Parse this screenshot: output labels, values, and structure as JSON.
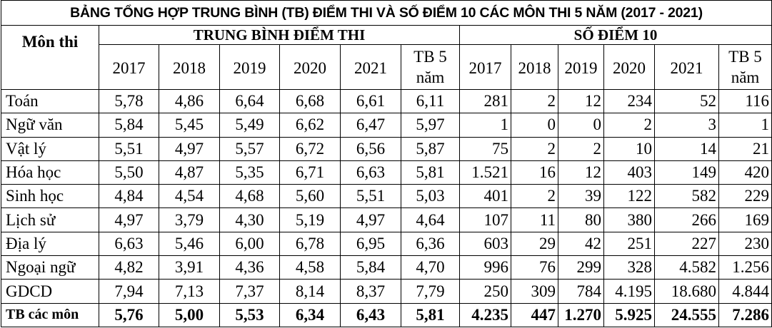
{
  "title": "BẢNG TỔNG HỢP TRUNG BÌNH (TB) ĐIỂM THI VÀ SỐ ĐIỂM 10 CÁC MÔN THI 5 NĂM (2017 - 2021)",
  "header": {
    "subject": "Môn thi",
    "group_average": "TRUNG BÌNH ĐIỂM THI",
    "group_tens": "SỐ ĐIỂM 10",
    "years": [
      "2017",
      "2018",
      "2019",
      "2020",
      "2021"
    ],
    "tb5_line1": "TB 5",
    "tb5_line2": "năm"
  },
  "rows": [
    {
      "subject": "Toán",
      "avg": [
        "5,78",
        "4,86",
        "6,64",
        "6,68",
        "6,61",
        "6,11"
      ],
      "tens": [
        "281",
        "2",
        "12",
        "234",
        "52",
        "116"
      ]
    },
    {
      "subject": "Ngữ văn",
      "avg": [
        "5,84",
        "5,45",
        "5,49",
        "6,62",
        "6,47",
        "5,97"
      ],
      "tens": [
        "1",
        "0",
        "0",
        "2",
        "3",
        "1"
      ]
    },
    {
      "subject": "Vật lý",
      "avg": [
        "5,51",
        "4,97",
        "5,57",
        "6,72",
        "6,56",
        "5,87"
      ],
      "tens": [
        "75",
        "2",
        "2",
        "10",
        "14",
        "21"
      ]
    },
    {
      "subject": "Hóa học",
      "avg": [
        "5,50",
        "4,87",
        "5,35",
        "6,71",
        "6,63",
        "5,81"
      ],
      "tens": [
        "1.521",
        "16",
        "12",
        "403",
        "149",
        "420"
      ]
    },
    {
      "subject": "Sinh học",
      "avg": [
        "4,84",
        "4,54",
        "4,68",
        "5,60",
        "5,51",
        "5,03"
      ],
      "tens": [
        "401",
        "2",
        "39",
        "122",
        "582",
        "229"
      ]
    },
    {
      "subject": "Lịch sử",
      "avg": [
        "4,97",
        "3,79",
        "4,30",
        "5,19",
        "4,97",
        "4,64"
      ],
      "tens": [
        "107",
        "11",
        "80",
        "380",
        "266",
        "169"
      ]
    },
    {
      "subject": "Địa lý",
      "avg": [
        "6,63",
        "5,46",
        "6,00",
        "6,78",
        "6,95",
        "6,36"
      ],
      "tens": [
        "603",
        "29",
        "42",
        "251",
        "227",
        "230"
      ]
    },
    {
      "subject": "Ngoại ngữ",
      "avg": [
        "4,82",
        "3,91",
        "4,36",
        "4,58",
        "5,84",
        "4,70"
      ],
      "tens": [
        "996",
        "76",
        "299",
        "328",
        "4.582",
        "1.256"
      ]
    },
    {
      "subject": "GDCD",
      "avg": [
        "7,94",
        "7,13",
        "7,37",
        "8,14",
        "8,37",
        "7,79"
      ],
      "tens": [
        "250",
        "309",
        "784",
        "4.195",
        "18.680",
        "4.844"
      ]
    }
  ],
  "total": {
    "subject": "TB các môn",
    "avg": [
      "5,76",
      "5,00",
      "5,53",
      "6,34",
      "6,43",
      "5,81"
    ],
    "tens": [
      "4.235",
      "447",
      "1.270",
      "5.925",
      "24.555",
      "7.286"
    ]
  }
}
